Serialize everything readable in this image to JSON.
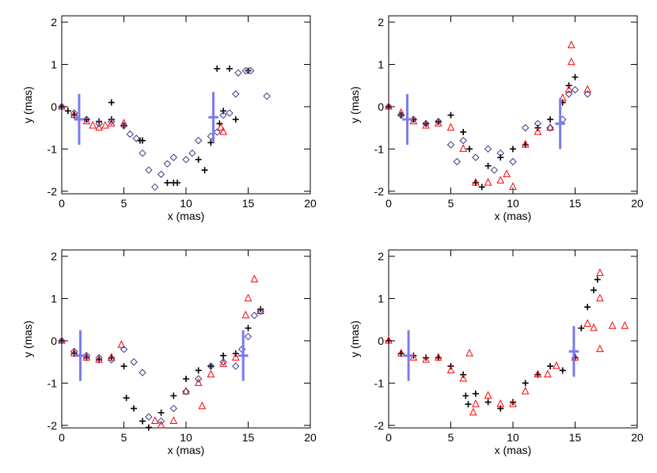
{
  "chart_data": [
    {
      "type": "scatter",
      "xlabel": "x (mas)",
      "ylabel": "y (mas)",
      "xlim": [
        0,
        20
      ],
      "ylim": [
        -2.06,
        2.15
      ],
      "xticks": [
        0,
        5,
        10,
        15,
        20
      ],
      "yticks": [
        -2,
        -1,
        0,
        1,
        2
      ],
      "series": [
        {
          "marker": "plus",
          "color": "#000000",
          "x": [
            0,
            0.5,
            1,
            2,
            3,
            4,
            4,
            5,
            6.3,
            6.5,
            8.5,
            9,
            9.3,
            11,
            11.5,
            12,
            12.5,
            12.7,
            13,
            13.5,
            14,
            15
          ],
          "y": [
            0,
            -0.1,
            -0.2,
            -0.3,
            -0.35,
            0.1,
            -0.3,
            -0.45,
            -0.8,
            -0.8,
            -1.8,
            -1.8,
            -1.8,
            -1.25,
            -1.5,
            -0.85,
            0.9,
            -0.4,
            -0.1,
            0.9,
            -0.3,
            0.85
          ]
        },
        {
          "marker": "triangle",
          "color": "#ff0000",
          "x": [
            0,
            1,
            2,
            2.5,
            3,
            3.5,
            4,
            5,
            12.8,
            13
          ],
          "y": [
            0,
            -0.2,
            -0.35,
            -0.45,
            -0.5,
            -0.45,
            -0.4,
            -0.4,
            -0.5,
            -0.6
          ]
        },
        {
          "marker": "diamond",
          "color": "#3a3a8c",
          "x": [
            0,
            1,
            2,
            3,
            4,
            5,
            5.5,
            6,
            6.5,
            7,
            7.5,
            8,
            8.5,
            9,
            10,
            10.5,
            11,
            12,
            12.5,
            13,
            13.5,
            14,
            14.2,
            14.8,
            15.2,
            16.5
          ],
          "y": [
            0,
            -0.15,
            -0.3,
            -0.4,
            -0.35,
            -0.45,
            -0.65,
            -0.75,
            -1.1,
            -1.5,
            -1.9,
            -1.6,
            -1.35,
            -1.2,
            -1.25,
            -1.1,
            -0.8,
            -0.7,
            -0.6,
            -0.2,
            -0.15,
            0.3,
            0.8,
            0.85,
            0.85,
            0.25
          ]
        }
      ],
      "errorbars": {
        "color": "#7b7bf0",
        "x": [
          1.4,
          12.2
        ],
        "y": [
          -0.3,
          -0.25
        ],
        "xerr": [
          0.4,
          0.4
        ],
        "yerr": [
          0.6,
          0.6
        ]
      }
    },
    {
      "type": "scatter",
      "xlabel": "x (mas)",
      "ylabel": "y (mas)",
      "xlim": [
        0,
        20
      ],
      "ylim": [
        -2.06,
        2.15
      ],
      "xticks": [
        0,
        5,
        10,
        15,
        20
      ],
      "yticks": [
        -2,
        -1,
        0,
        1,
        2
      ],
      "series": [
        {
          "marker": "plus",
          "color": "#000000",
          "x": [
            0,
            1,
            2,
            3,
            4,
            5,
            6,
            6.5,
            7,
            7.5,
            8,
            9,
            10,
            11,
            12,
            13,
            14,
            14.5,
            15
          ],
          "y": [
            0,
            -0.2,
            -0.3,
            -0.4,
            -0.35,
            -0.2,
            -0.6,
            -1.0,
            -1.8,
            -1.9,
            -1.4,
            -1.2,
            -1.0,
            -0.9,
            -0.5,
            -0.3,
            0.1,
            0.5,
            0.7
          ]
        },
        {
          "marker": "triangle",
          "color": "#ff0000",
          "x": [
            0,
            1,
            2,
            3,
            4,
            5,
            6,
            7,
            8,
            9,
            9.5,
            10,
            11,
            12,
            13,
            14,
            14.5,
            14.7,
            14.7,
            16
          ],
          "y": [
            0,
            -0.15,
            -0.35,
            -0.45,
            -0.4,
            -0.5,
            -1.0,
            -1.8,
            -1.8,
            -1.75,
            -1.6,
            -1.9,
            -0.9,
            -0.6,
            -0.5,
            0.2,
            0.4,
            1.05,
            1.45,
            0.4
          ]
        },
        {
          "marker": "diamond",
          "color": "#3a3a8c",
          "x": [
            0,
            1,
            2,
            3,
            4,
            5,
            5.5,
            6,
            7,
            8,
            8.5,
            9,
            10,
            11,
            12,
            13,
            14,
            14.5,
            15,
            16
          ],
          "y": [
            0,
            -0.2,
            -0.3,
            -0.4,
            -0.35,
            -0.9,
            -1.3,
            -0.8,
            -1.2,
            -1.0,
            -1.5,
            -1.1,
            -1.3,
            -0.5,
            -0.4,
            -0.5,
            -0.3,
            0.3,
            0.4,
            0.3
          ]
        }
      ],
      "errorbars": {
        "color": "#7b7bf0",
        "x": [
          1.5,
          13.8
        ],
        "y": [
          -0.3,
          -0.4
        ],
        "xerr": [
          0.4,
          0.4
        ],
        "yerr": [
          0.6,
          0.6
        ]
      }
    },
    {
      "type": "scatter",
      "xlabel": "x (mas)",
      "ylabel": "y (mas)",
      "xlim": [
        0,
        20
      ],
      "ylim": [
        -2.06,
        2.15
      ],
      "xticks": [
        0,
        5,
        10,
        15,
        20
      ],
      "yticks": [
        -2,
        -1,
        0,
        1,
        2
      ],
      "series": [
        {
          "marker": "plus",
          "color": "#000000",
          "x": [
            0,
            1,
            2,
            3,
            4,
            5,
            5.2,
            5.8,
            6.5,
            7,
            8,
            9,
            10,
            11,
            12,
            13,
            14,
            15,
            16
          ],
          "y": [
            0,
            -0.3,
            -0.4,
            -0.45,
            -0.4,
            -0.6,
            -1.35,
            -1.6,
            -1.9,
            -2.05,
            -1.7,
            -1.3,
            -0.9,
            -0.7,
            -0.6,
            -0.35,
            -0.3,
            0.3,
            0.75
          ]
        },
        {
          "marker": "triangle",
          "color": "#ff0000",
          "x": [
            0,
            1,
            2,
            3,
            4,
            4.8,
            7.5,
            8,
            9,
            10,
            11,
            11.3,
            12,
            13,
            14,
            14.8,
            15,
            15.5,
            16
          ],
          "y": [
            0,
            -0.3,
            -0.4,
            -0.45,
            -0.4,
            -0.1,
            -1.9,
            -2.0,
            -1.9,
            -1.2,
            -1.0,
            -1.55,
            -0.8,
            -0.55,
            -0.4,
            0.6,
            1.0,
            1.45,
            0.7
          ]
        },
        {
          "marker": "diamond",
          "color": "#3a3a8c",
          "x": [
            0,
            1,
            2,
            3,
            4,
            5,
            5.8,
            6.5,
            7,
            8,
            9,
            10,
            11,
            12,
            13,
            14,
            14.5,
            15,
            15.5,
            16
          ],
          "y": [
            0,
            -0.25,
            -0.35,
            -0.4,
            -0.45,
            -0.2,
            -0.5,
            -0.75,
            -1.8,
            -1.9,
            -1.6,
            -1.2,
            -0.9,
            -0.6,
            -0.5,
            -0.6,
            -0.2,
            0.1,
            0.6,
            0.7
          ]
        }
      ],
      "errorbars": {
        "color": "#7b7bf0",
        "x": [
          1.5,
          14.6
        ],
        "y": [
          -0.35,
          -0.35
        ],
        "xerr": [
          0.4,
          0.4
        ],
        "yerr": [
          0.6,
          0.6
        ]
      }
    },
    {
      "type": "scatter",
      "xlabel": "x (mas)",
      "ylabel": "y (mas)",
      "xlim": [
        0,
        20
      ],
      "ylim": [
        -2.06,
        2.15
      ],
      "xticks": [
        0,
        5,
        10,
        15,
        20
      ],
      "yticks": [
        -2,
        -1,
        0,
        1,
        2
      ],
      "series": [
        {
          "marker": "plus",
          "color": "#000000",
          "x": [
            0,
            1,
            2,
            3,
            4,
            5,
            6,
            6.2,
            6.4,
            7,
            8,
            9,
            10,
            11,
            12,
            13,
            14,
            15,
            15.5,
            16,
            16.5,
            16.8
          ],
          "y": [
            0,
            -0.3,
            -0.35,
            -0.4,
            -0.4,
            -0.6,
            -0.8,
            -1.3,
            -1.5,
            -1.25,
            -1.45,
            -1.6,
            -1.45,
            -1.0,
            -0.8,
            -0.6,
            -0.7,
            -0.4,
            0.3,
            0.8,
            1.2,
            1.45
          ]
        },
        {
          "marker": "triangle",
          "color": "#ff0000",
          "x": [
            0,
            1,
            2,
            3,
            4,
            5,
            6,
            6.5,
            6.8,
            7,
            8,
            9,
            10,
            11,
            12,
            12.8,
            13.5,
            15,
            16,
            16.5,
            17,
            17,
            17,
            18,
            19
          ],
          "y": [
            0,
            -0.3,
            -0.4,
            -0.45,
            -0.4,
            -0.7,
            -0.9,
            -0.3,
            -1.7,
            -1.5,
            -1.3,
            -1.5,
            -1.5,
            -1.2,
            -0.8,
            -0.8,
            -0.6,
            -0.4,
            0.4,
            0.3,
            1.6,
            1.0,
            -0.2,
            0.35,
            0.35
          ]
        }
      ],
      "errorbars": {
        "color": "#7b7bf0",
        "x": [
          1.6,
          14.9
        ],
        "y": [
          -0.35,
          -0.25
        ],
        "xerr": [
          0.4,
          0.4
        ],
        "yerr": [
          0.6,
          0.6
        ]
      }
    }
  ]
}
